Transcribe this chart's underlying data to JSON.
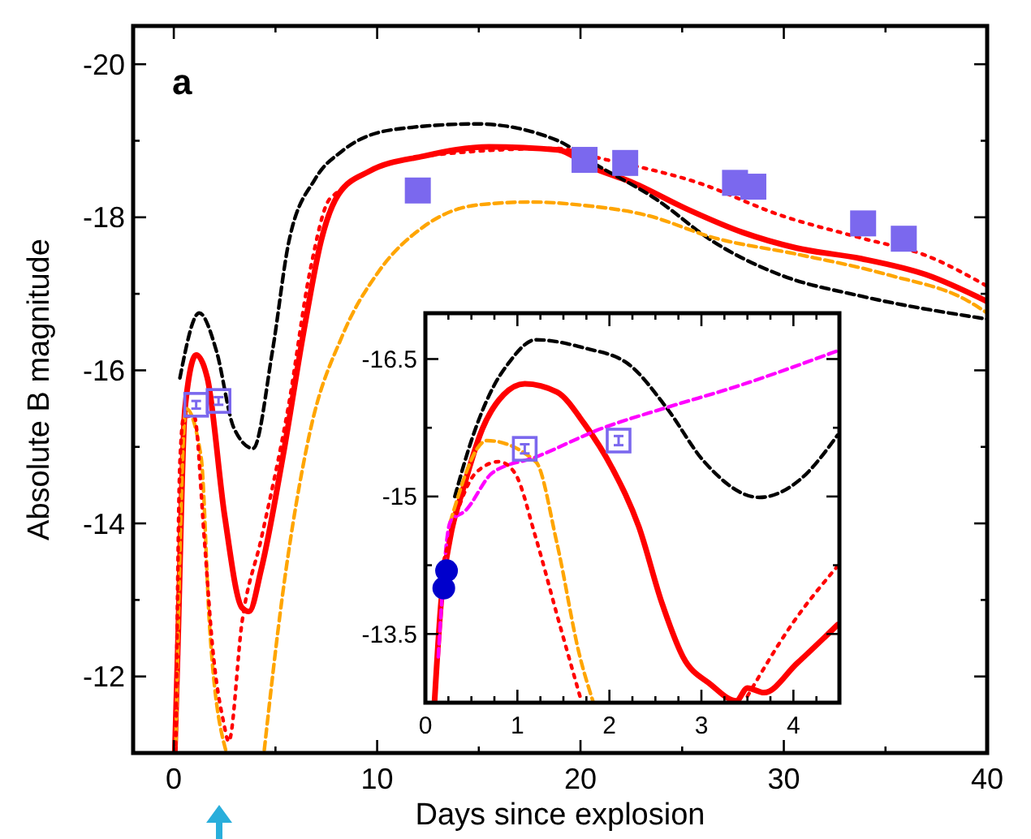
{
  "chart_data": [
    {
      "type": "line",
      "xlabel": "Days since explosion",
      "ylabel": "Absolute B magnitude",
      "annotations": [
        "a"
      ],
      "xlim": [
        -2,
        40
      ],
      "ylim": [
        -11,
        -20.5
      ],
      "xticks": [
        0,
        {
          "value": 5,
          "label": null
        },
        10,
        {
          "value": 15,
          "label": null
        },
        20,
        {
          "value": 25,
          "label": null
        },
        30,
        {
          "value": 35,
          "label": null
        },
        40
      ],
      "yticks": [
        -20,
        {
          "value": -19,
          "label": null
        },
        -18,
        {
          "value": -17,
          "label": null
        },
        -16,
        {
          "value": -15,
          "label": null
        },
        -14,
        {
          "value": -13,
          "label": null
        },
        -12
      ],
      "series": [
        {
          "type": "line",
          "color": "#000000",
          "line_style": "dashed",
          "x": [
            0.3,
            1.25,
            2.1,
            2.95,
            3.9,
            4.85,
            5.65,
            6.95,
            8.3,
            10.9,
            14.9,
            18.9,
            20.5,
            23.7,
            26.6,
            29.8,
            33.8,
            40
          ],
          "values": [
            -15.9,
            -16.75,
            -16.25,
            -15.25,
            -14.98,
            -16.25,
            -17.67,
            -18.5,
            -18.87,
            -19.15,
            -19.22,
            -19.0,
            -18.73,
            -18.24,
            -17.67,
            -17.25,
            -16.97,
            -16.67
          ]
        },
        {
          "type": "line",
          "color": "#ffa500",
          "line_style": "dashed",
          "x": [
            0.1,
            0.6,
            1.35,
            1.75,
            2.55,
            3.5,
            4.45,
            5.35,
            6.7,
            8.3,
            10.1,
            12.3,
            14.9,
            17.6,
            20,
            23.2,
            26.6,
            30.6,
            35.1,
            39.1,
            40
          ],
          "values": [
            -11.1,
            -15.5,
            -14.85,
            -12.7,
            -11.04,
            null,
            -11.04,
            -13.07,
            -15.2,
            -16.46,
            -17.3,
            -17.88,
            -18.16,
            -18.2,
            -18.16,
            -18.03,
            -17.73,
            -17.52,
            -17.25,
            -16.9,
            -16.75
          ]
        },
        {
          "type": "line",
          "color": "#ff0000",
          "line_style": "dotted",
          "x": [
            0.1,
            0.3,
            0.5,
            1.0,
            1.5,
            1.9,
            2.45,
            2.7,
            3.35,
            4.3,
            5.65,
            6.7,
            7.7,
            12.3,
            18.9,
            20.5,
            25.8,
            29.8,
            33.8,
            37,
            40
          ],
          "values": [
            -11.1,
            -14.8,
            -15.4,
            -15.4,
            -13.8,
            -12.4,
            -11.4,
            -11.15,
            -12.7,
            -13.8,
            -15.55,
            -17.3,
            -18.25,
            -18.8,
            -18.9,
            -18.8,
            -18.45,
            -18.03,
            -17.73,
            -17.5,
            -17.1
          ]
        },
        {
          "type": "line",
          "color": "#ff0000",
          "line_style": "solid",
          "x": [
            0.05,
            0.2,
            0.55,
            1.1,
            1.65,
            2.5,
            3.35,
            3.7,
            4.3,
            5.35,
            6.45,
            7.25,
            8.1,
            9.6,
            12.3,
            15.5,
            18.9,
            20.5,
            22.6,
            25.3,
            28,
            30.6,
            33.8,
            37,
            40
          ],
          "values": [
            -11.0,
            -12.4,
            -15.5,
            -16.2,
            -15.9,
            -14.1,
            -12.9,
            -12.85,
            -13.4,
            -14.85,
            -16.6,
            -17.7,
            -18.3,
            -18.6,
            -18.8,
            -18.92,
            -18.88,
            -18.66,
            -18.45,
            -18.1,
            -17.8,
            -17.6,
            -17.46,
            -17.25,
            -16.9
          ]
        },
        {
          "type": "scatter",
          "color": "#7b68ee",
          "marker": "square",
          "x": [
            12.0,
            20.2,
            22.2,
            27.6,
            28.5,
            33.9,
            35.9
          ],
          "values": [
            -18.35,
            -18.75,
            -18.71,
            -18.45,
            -18.4,
            -17.92,
            -17.72
          ]
        },
        {
          "type": "scatter",
          "color": "#7b68ee",
          "marker": "square",
          "x": [
            1.1,
            2.2
          ],
          "values": [
            -15.55,
            -15.6
          ],
          "errors": [
            0.05,
            0.05
          ]
        }
      ]
    },
    {
      "type": "line",
      "xlim": [
        0,
        4.5
      ],
      "ylim": [
        -12.75,
        -17
      ],
      "xticks": [
        0,
        {
          "value": 0.25,
          "label": null
        },
        {
          "value": 0.5,
          "label": null
        },
        {
          "value": 0.75,
          "label": null
        },
        1,
        {
          "value": 1.25,
          "label": null
        },
        {
          "value": 1.5,
          "label": null
        },
        {
          "value": 1.75,
          "label": null
        },
        2,
        {
          "value": 2.25,
          "label": null
        },
        {
          "value": 2.5,
          "label": null
        },
        {
          "value": 2.75,
          "label": null
        },
        3,
        {
          "value": 3.25,
          "label": null
        },
        {
          "value": 3.5,
          "label": null
        },
        {
          "value": 3.75,
          "label": null
        },
        4,
        {
          "value": 4.25,
          "label": null
        }
      ],
      "yticks": [
        -16.5,
        {
          "value": -15.75,
          "label": null
        },
        -15,
        {
          "value": -14.25,
          "label": null
        },
        -13.5
      ],
      "series": [
        {
          "type": "line",
          "color": "#000000",
          "line_style": "dashed",
          "x": [
            0.32,
            0.5,
            0.73,
            0.9,
            1.2,
            1.73,
            2.2,
            2.62,
            3.03,
            3.63,
            4.09,
            4.48
          ],
          "values": [
            -15.0,
            -15.61,
            -16.18,
            -16.45,
            -16.71,
            -16.62,
            -16.45,
            -15.97,
            -15.38,
            -14.99,
            -15.2,
            -15.67
          ]
        },
        {
          "type": "line",
          "color": "#ffa500",
          "line_style": "dashed",
          "x": [
            0.27,
            0.67,
            1.2,
            1.43,
            1.68,
            1.82
          ],
          "values": [
            -14.72,
            -15.61,
            -15.38,
            -14.49,
            -13.25,
            -12.77
          ]
        },
        {
          "type": "line",
          "color": "#ff00ff",
          "line_style": "dashed",
          "x": [
            0.14,
            0.27,
            0.44,
            0.73,
            1.2,
            1.91,
            2.62,
            3.38,
            4.48
          ],
          "values": [
            -13.25,
            -14.72,
            -14.85,
            -15.26,
            -15.43,
            -15.74,
            -15.97,
            -16.2,
            -16.59
          ]
        },
        {
          "type": "line",
          "color": "#ff0000",
          "line_style": "dotted",
          "x": [
            0.2,
            0.37,
            0.55,
            0.8,
            0.97,
            1.2,
            1.43,
            1.68,
            2.6,
            3.5,
            3.98,
            4.48
          ],
          "values": [
            -14.3,
            -14.9,
            -15.26,
            -15.38,
            -15.26,
            -14.55,
            -13.71,
            -12.82,
            null,
            -12.82,
            -13.6,
            -14.24
          ]
        },
        {
          "type": "line",
          "color": "#ff0000",
          "line_style": "solid",
          "x": [
            0.1,
            0.17,
            0.27,
            0.41,
            0.62,
            0.85,
            1.08,
            1.43,
            1.73,
            2.03,
            2.32,
            2.57,
            2.8,
            3.1,
            3.38,
            3.5,
            3.68,
            4.04,
            4.48
          ],
          "values": [
            -12.77,
            -13.84,
            -14.55,
            -15.08,
            -15.74,
            -16.11,
            -16.23,
            -16.14,
            -15.79,
            -15.31,
            -14.67,
            -13.84,
            -13.25,
            -12.95,
            -12.77,
            -12.91,
            -12.86,
            -13.18,
            -13.6
          ]
        },
        {
          "type": "scatter",
          "color": "#7b68ee",
          "marker": "square",
          "x": [
            1.08,
            2.1
          ],
          "values": [
            -15.52,
            -15.61
          ],
          "errors": [
            0.05,
            0.05
          ]
        },
        {
          "type": "scatter",
          "color": "#0000cc",
          "marker": "circle",
          "x": [
            0.2,
            0.23
          ],
          "values": [
            -14.0,
            -14.19
          ]
        }
      ]
    }
  ]
}
